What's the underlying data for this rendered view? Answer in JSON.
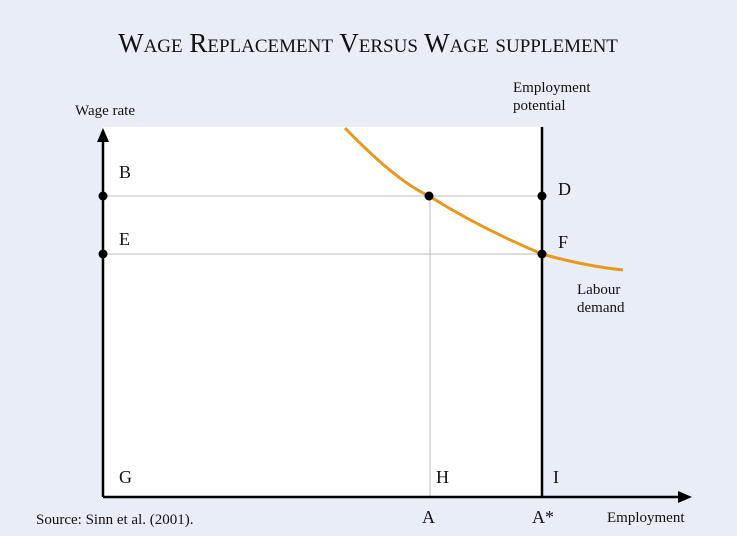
{
  "title": "Wage Replacement Versus Wage supplement",
  "y_axis_label": "Wage rate",
  "x_axis_label": "Employment",
  "employment_potential": [
    "Employment",
    "potential"
  ],
  "curve_label": [
    "Labour",
    "demand"
  ],
  "points": {
    "B": "B",
    "D": "D",
    "E": "E",
    "F": "F",
    "G": "G",
    "H": "H",
    "I": "I"
  },
  "x_ticks": {
    "A": "A",
    "A_star": "A*"
  },
  "source": "Source: Sinn et al. (2001)."
}
